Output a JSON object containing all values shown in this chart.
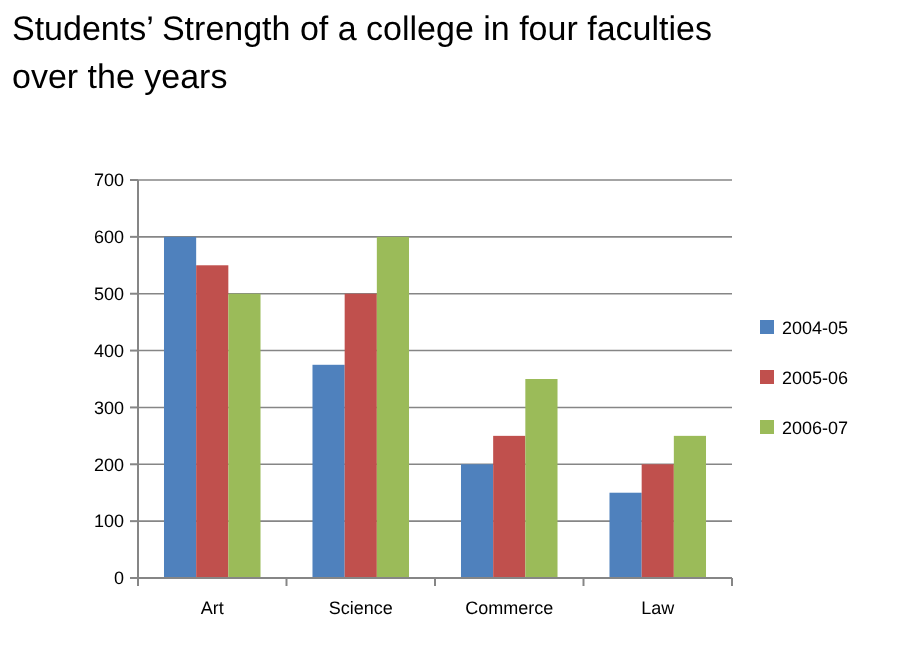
{
  "chart_data": {
    "type": "bar",
    "title": "Students’ Strength of a college in four faculties over the years",
    "categories": [
      "Art",
      "Science",
      "Commerce",
      "Law"
    ],
    "series": [
      {
        "name": "2004-05",
        "color": "#4f81bd",
        "values": [
          600,
          375,
          200,
          150
        ]
      },
      {
        "name": "2005-06",
        "color": "#c0504d",
        "values": [
          550,
          500,
          250,
          200
        ]
      },
      {
        "name": "2006-07",
        "color": "#9bbb59",
        "values": [
          500,
          600,
          350,
          250
        ]
      }
    ],
    "ylim": [
      0,
      700
    ],
    "yticks": [
      0,
      100,
      200,
      300,
      400,
      500,
      600,
      700
    ],
    "grid": "y",
    "legend": "right"
  }
}
